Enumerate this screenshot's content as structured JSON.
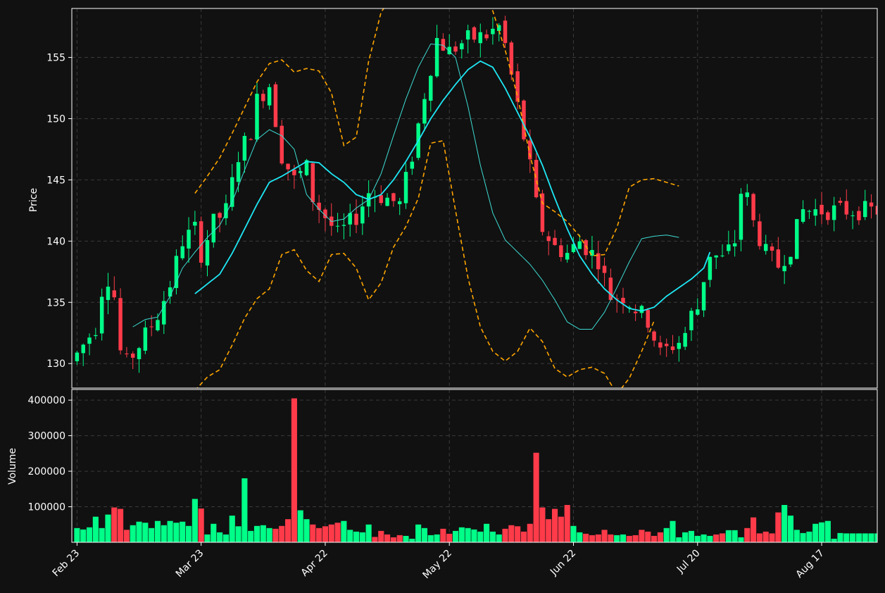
{
  "colors": {
    "background": "#111111",
    "up": "#00ff88",
    "down": "#ff3b4a",
    "sma_fast": "#3ddcd3",
    "sma_slow": "#1ee8f5",
    "bands": "#ffa500",
    "grid": "#3a3a3a",
    "axes": "#ffffff"
  },
  "chart_data": [
    {
      "type": "candlestick",
      "ylabel": "Price",
      "ylim": [
        128,
        159
      ],
      "yticks": [
        130,
        135,
        140,
        145,
        150,
        155
      ],
      "grid": true,
      "day_count": 130,
      "x_ticks": [
        {
          "label": "Feb 23",
          "day": 0
        },
        {
          "label": "Mar 23",
          "day": 20
        },
        {
          "label": "Apr 22",
          "day": 40
        },
        {
          "label": "May 22",
          "day": 60
        },
        {
          "label": "Jun 22",
          "day": 80
        },
        {
          "label": "Jul 20",
          "day": 100
        },
        {
          "label": "Aug 17",
          "day": 120
        }
      ],
      "ohlc_keypoints": [
        [
          0,
          130.8
        ],
        [
          3,
          133.0
        ],
        [
          4,
          136.0
        ],
        [
          5,
          137.0
        ],
        [
          6,
          135.5
        ],
        [
          7,
          131.0
        ],
        [
          8,
          130.0
        ],
        [
          10,
          131.5
        ],
        [
          13,
          134.0
        ],
        [
          15,
          136.5
        ],
        [
          17,
          140.0
        ],
        [
          19,
          141.0
        ],
        [
          20,
          139.0
        ],
        [
          22,
          141.5
        ],
        [
          24,
          142.5
        ],
        [
          26,
          147.0
        ],
        [
          28,
          149.0
        ],
        [
          29,
          151.5
        ],
        [
          31,
          152.8
        ],
        [
          33,
          147.0
        ],
        [
          35,
          145.0
        ],
        [
          37,
          146.0
        ],
        [
          38,
          143.5
        ],
        [
          40,
          142.0
        ],
        [
          42,
          140.5
        ],
        [
          45,
          142.0
        ],
        [
          47,
          144.0
        ],
        [
          50,
          143.5
        ],
        [
          52,
          143.0
        ],
        [
          54,
          147.0
        ],
        [
          56,
          152.0
        ],
        [
          58,
          156.5
        ],
        [
          60,
          155.5
        ],
        [
          63,
          156.5
        ],
        [
          66,
          156.8
        ],
        [
          68,
          157.5
        ],
        [
          69,
          156.0
        ],
        [
          71,
          151.0
        ],
        [
          73,
          146.0
        ],
        [
          74,
          143.0
        ],
        [
          75,
          141.0
        ],
        [
          77,
          139.5
        ],
        [
          79,
          139.0
        ],
        [
          81,
          140.0
        ],
        [
          84,
          138.5
        ],
        [
          86,
          135.5
        ],
        [
          88,
          135.5
        ],
        [
          90,
          134.5
        ],
        [
          92,
          133.5
        ],
        [
          94,
          130.8
        ],
        [
          96,
          131.5
        ],
        [
          97,
          131.8
        ],
        [
          98,
          132.5
        ],
        [
          99,
          134.0
        ],
        [
          100,
          134.5
        ],
        [
          101,
          137.0
        ],
        [
          102,
          139.0
        ],
        [
          104,
          138.5
        ],
        [
          106,
          140.0
        ],
        [
          107,
          144.0
        ],
        [
          108,
          143.5
        ],
        [
          109,
          141.5
        ],
        [
          111,
          139.0
        ],
        [
          113,
          138.0
        ],
        [
          115,
          139.5
        ],
        [
          116,
          141.0
        ],
        [
          117,
          142.5
        ]
      ],
      "sma_slow_keypoints": [
        [
          19,
          135.7
        ],
        [
          21,
          136.5
        ],
        [
          23,
          137.3
        ],
        [
          25,
          139.0
        ],
        [
          27,
          141.0
        ],
        [
          29,
          143.0
        ],
        [
          31,
          144.8
        ],
        [
          33,
          145.3
        ],
        [
          35,
          145.9
        ],
        [
          37,
          146.5
        ],
        [
          39,
          146.4
        ],
        [
          41,
          145.5
        ],
        [
          43,
          144.8
        ],
        [
          45,
          143.8
        ],
        [
          47,
          143.4
        ],
        [
          49,
          143.8
        ],
        [
          51,
          145.0
        ],
        [
          53,
          146.5
        ],
        [
          55,
          148.2
        ],
        [
          57,
          150.0
        ],
        [
          59,
          151.5
        ],
        [
          61,
          152.8
        ],
        [
          63,
          154.0
        ],
        [
          65,
          154.7
        ],
        [
          67,
          154.2
        ],
        [
          69,
          152.5
        ],
        [
          71,
          150.5
        ],
        [
          73,
          148.5
        ],
        [
          75,
          146.2
        ],
        [
          77,
          143.5
        ],
        [
          79,
          141.0
        ],
        [
          81,
          138.8
        ],
        [
          83,
          137.3
        ],
        [
          85,
          136.1
        ],
        [
          87,
          135.2
        ],
        [
          89,
          134.5
        ],
        [
          91,
          134.3
        ],
        [
          93,
          134.6
        ],
        [
          95,
          135.5
        ],
        [
          97,
          136.2
        ],
        [
          99,
          136.9
        ],
        [
          101,
          137.8
        ],
        [
          102,
          139.1
        ]
      ],
      "sma_fast_keypoints": [
        [
          9,
          133.0
        ],
        [
          11,
          133.6
        ],
        [
          13,
          133.8
        ],
        [
          15,
          135.5
        ],
        [
          17,
          137.8
        ],
        [
          19,
          139.1
        ],
        [
          21,
          140.3
        ],
        [
          23,
          141.3
        ],
        [
          25,
          143.2
        ],
        [
          27,
          145.8
        ],
        [
          29,
          148.3
        ],
        [
          31,
          149.1
        ],
        [
          33,
          148.6
        ],
        [
          35,
          147.5
        ],
        [
          37,
          143.8
        ],
        [
          39,
          142.6
        ],
        [
          41,
          141.6
        ],
        [
          43,
          141.8
        ],
        [
          45,
          142.7
        ],
        [
          47,
          143.4
        ],
        [
          49,
          145.5
        ],
        [
          51,
          148.6
        ],
        [
          53,
          151.6
        ],
        [
          55,
          154.2
        ],
        [
          57,
          156.1
        ],
        [
          59,
          156.0
        ],
        [
          61,
          155.0
        ],
        [
          63,
          151.0
        ],
        [
          65,
          146.2
        ],
        [
          67,
          142.3
        ],
        [
          69,
          140.1
        ],
        [
          71,
          139.1
        ],
        [
          73,
          138.1
        ],
        [
          75,
          136.8
        ],
        [
          77,
          135.2
        ],
        [
          79,
          133.4
        ],
        [
          81,
          132.8
        ],
        [
          83,
          132.8
        ],
        [
          85,
          134.2
        ],
        [
          87,
          136.2
        ],
        [
          89,
          138.3
        ],
        [
          91,
          140.2
        ],
        [
          93,
          140.4
        ],
        [
          95,
          140.5
        ],
        [
          97,
          140.3
        ]
      ],
      "bb_upper_keypoints": [
        [
          19,
          143.9
        ],
        [
          21,
          145.3
        ],
        [
          23,
          146.8
        ],
        [
          25,
          148.8
        ],
        [
          27,
          150.9
        ],
        [
          29,
          153.0
        ],
        [
          31,
          154.5
        ],
        [
          33,
          154.8
        ],
        [
          35,
          153.8
        ],
        [
          37,
          154.1
        ],
        [
          39,
          153.9
        ],
        [
          41,
          152.1
        ],
        [
          43,
          147.8
        ],
        [
          45,
          148.5
        ],
        [
          47,
          154.7
        ],
        [
          49,
          158.7
        ],
        [
          51,
          160.1
        ],
        [
          65,
          160.2
        ],
        [
          67,
          158.8
        ],
        [
          69,
          155.6
        ],
        [
          71,
          151.8
        ],
        [
          73,
          147.0
        ],
        [
          75,
          143.1
        ],
        [
          77,
          142.4
        ],
        [
          79,
          141.6
        ],
        [
          81,
          140.4
        ],
        [
          83,
          138.8
        ],
        [
          85,
          138.9
        ],
        [
          87,
          141.1
        ],
        [
          89,
          144.4
        ],
        [
          91,
          145.0
        ],
        [
          93,
          145.1
        ],
        [
          95,
          144.8
        ],
        [
          97,
          144.5
        ]
      ],
      "bb_lower_keypoints": [
        [
          19,
          127.8
        ],
        [
          21,
          128.9
        ],
        [
          23,
          129.5
        ],
        [
          25,
          131.5
        ],
        [
          27,
          133.7
        ],
        [
          29,
          135.3
        ],
        [
          31,
          136.1
        ],
        [
          33,
          138.9
        ],
        [
          35,
          139.3
        ],
        [
          37,
          137.6
        ],
        [
          39,
          136.7
        ],
        [
          41,
          138.9
        ],
        [
          43,
          139.0
        ],
        [
          45,
          137.8
        ],
        [
          47,
          135.2
        ],
        [
          49,
          136.6
        ],
        [
          51,
          139.5
        ],
        [
          53,
          141.2
        ],
        [
          55,
          143.5
        ],
        [
          57,
          148.0
        ],
        [
          59,
          148.2
        ],
        [
          61,
          142.5
        ],
        [
          63,
          137.0
        ],
        [
          65,
          133.0
        ],
        [
          67,
          131.0
        ],
        [
          69,
          130.2
        ],
        [
          71,
          131.0
        ],
        [
          73,
          132.9
        ],
        [
          75,
          131.8
        ],
        [
          77,
          129.6
        ],
        [
          79,
          128.9
        ],
        [
          81,
          129.5
        ],
        [
          83,
          129.7
        ],
        [
          85,
          129.2
        ],
        [
          87,
          127.5
        ],
        [
          89,
          128.8
        ],
        [
          91,
          131.0
        ],
        [
          93,
          133.5
        ]
      ]
    },
    {
      "type": "bar",
      "ylabel": "Volume",
      "ylim": [
        0,
        430000
      ],
      "yticks": [
        100000,
        200000,
        300000,
        400000
      ],
      "grid": true,
      "volume_keypoints": [
        [
          0,
          40000
        ],
        [
          1,
          36000
        ],
        [
          2,
          42000
        ],
        [
          3,
          72000
        ],
        [
          4,
          40000
        ],
        [
          5,
          78000
        ],
        [
          6,
          98000
        ],
        [
          7,
          94000
        ],
        [
          8,
          35000
        ],
        [
          9,
          48000
        ],
        [
          10,
          58000
        ],
        [
          11,
          55000
        ],
        [
          12,
          40000
        ],
        [
          13,
          60000
        ],
        [
          14,
          48000
        ],
        [
          15,
          60000
        ],
        [
          16,
          55000
        ],
        [
          17,
          58000
        ],
        [
          18,
          46000
        ],
        [
          19,
          122000
        ],
        [
          20,
          95000
        ],
        [
          21,
          22000
        ],
        [
          22,
          52000
        ],
        [
          23,
          28000
        ],
        [
          24,
          22000
        ],
        [
          25,
          75000
        ],
        [
          26,
          45000
        ],
        [
          27,
          180000
        ],
        [
          28,
          32000
        ],
        [
          29,
          46000
        ],
        [
          30,
          48000
        ],
        [
          31,
          40000
        ],
        [
          32,
          38000
        ],
        [
          33,
          46000
        ],
        [
          34,
          65000
        ],
        [
          35,
          405000
        ],
        [
          36,
          90000
        ],
        [
          37,
          65000
        ],
        [
          38,
          50000
        ],
        [
          39,
          40000
        ],
        [
          40,
          45000
        ],
        [
          41,
          50000
        ],
        [
          42,
          55000
        ],
        [
          43,
          60000
        ],
        [
          44,
          35000
        ],
        [
          45,
          30000
        ],
        [
          46,
          28000
        ],
        [
          47,
          50000
        ],
        [
          48,
          15000
        ],
        [
          49,
          32000
        ],
        [
          50,
          22000
        ],
        [
          51,
          14000
        ],
        [
          52,
          20000
        ],
        [
          53,
          18000
        ],
        [
          54,
          10000
        ],
        [
          55,
          50000
        ],
        [
          56,
          40000
        ],
        [
          57,
          20000
        ],
        [
          58,
          22000
        ],
        [
          59,
          38000
        ],
        [
          60,
          24000
        ],
        [
          61,
          32000
        ],
        [
          62,
          42000
        ],
        [
          63,
          40000
        ],
        [
          64,
          36000
        ],
        [
          65,
          30000
        ],
        [
          66,
          52000
        ],
        [
          67,
          30000
        ],
        [
          68,
          22000
        ],
        [
          69,
          38000
        ],
        [
          70,
          48000
        ],
        [
          71,
          45000
        ],
        [
          72,
          30000
        ],
        [
          73,
          52000
        ],
        [
          74,
          252000
        ],
        [
          75,
          98000
        ],
        [
          76,
          65000
        ],
        [
          77,
          94000
        ],
        [
          78,
          72000
        ],
        [
          79,
          105000
        ],
        [
          80,
          46000
        ],
        [
          81,
          28000
        ],
        [
          82,
          24000
        ],
        [
          83,
          20000
        ],
        [
          84,
          22000
        ],
        [
          85,
          35000
        ],
        [
          86,
          22000
        ],
        [
          87,
          20000
        ],
        [
          88,
          22000
        ],
        [
          89,
          18000
        ],
        [
          90,
          20000
        ],
        [
          91,
          35000
        ],
        [
          92,
          30000
        ],
        [
          93,
          18000
        ],
        [
          94,
          28000
        ],
        [
          95,
          40000
        ],
        [
          96,
          60000
        ],
        [
          97,
          14000
        ],
        [
          98,
          28000
        ],
        [
          99,
          32000
        ],
        [
          100,
          18000
        ],
        [
          101,
          22000
        ],
        [
          102,
          18000
        ],
        [
          103,
          22000
        ],
        [
          104,
          25000
        ],
        [
          105,
          34000
        ],
        [
          106,
          34000
        ],
        [
          107,
          14000
        ],
        [
          108,
          40000
        ],
        [
          109,
          70000
        ],
        [
          110,
          25000
        ],
        [
          111,
          30000
        ],
        [
          112,
          25000
        ],
        [
          113,
          84000
        ],
        [
          114,
          105000
        ],
        [
          115,
          75000
        ],
        [
          116,
          35000
        ],
        [
          117,
          26000
        ],
        [
          118,
          30000
        ],
        [
          119,
          52000
        ],
        [
          120,
          56000
        ],
        [
          121,
          60000
        ],
        [
          122,
          10000
        ],
        [
          123,
          26000
        ],
        [
          124,
          25000
        ]
      ]
    }
  ]
}
